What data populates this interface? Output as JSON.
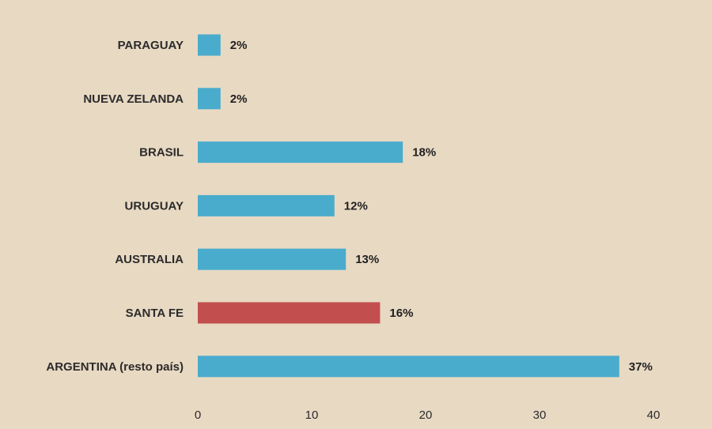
{
  "chart_data": {
    "type": "bar",
    "orientation": "horizontal",
    "categories": [
      "PARAGUAY",
      "NUEVA ZELANDA",
      "BRASIL",
      "URUGUAY",
      "AUSTRALIA",
      "SANTA FE",
      "ARGENTINA (resto país)"
    ],
    "values": [
      2,
      2,
      18,
      12,
      13,
      16,
      37
    ],
    "value_labels": [
      "2%",
      "2%",
      "18%",
      "12%",
      "13%",
      "16%",
      "37%"
    ],
    "xlim": [
      0,
      40
    ],
    "x_ticks": [
      "0",
      "10",
      "20",
      "30",
      "40"
    ],
    "title": "",
    "xlabel": "",
    "ylabel": "",
    "grid": false,
    "colors": {
      "default_bar": "#4aaccc",
      "highlight_bar": "#c24e4e",
      "highlight_category": "SANTA FE",
      "background": "#e8d9c3"
    }
  }
}
